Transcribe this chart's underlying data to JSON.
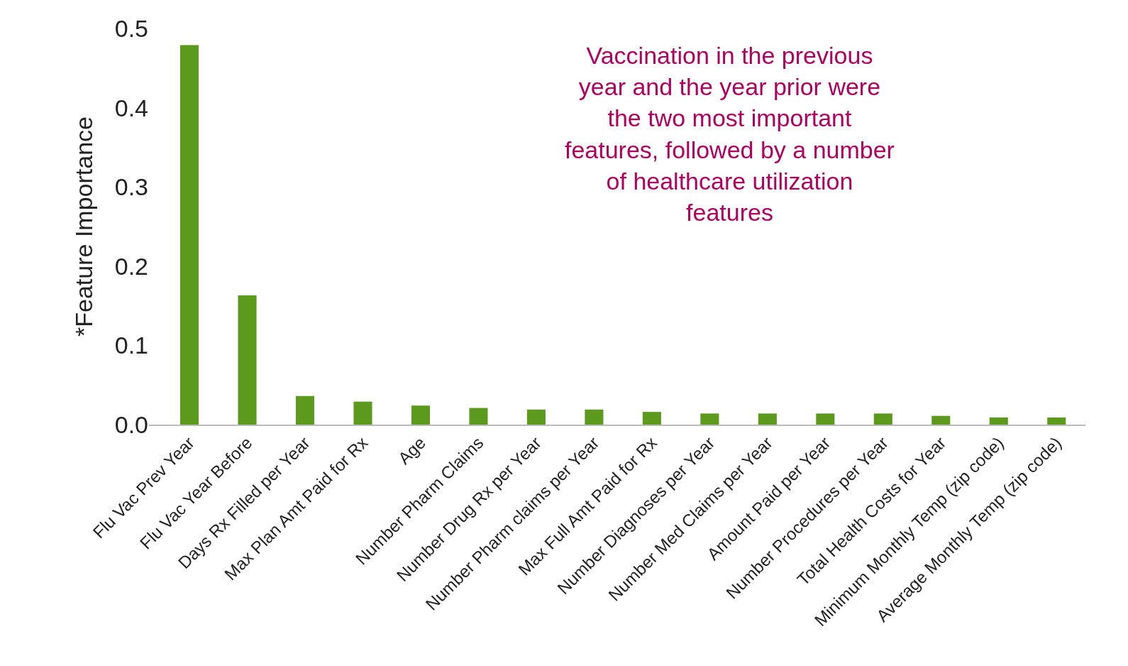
{
  "chart_data": {
    "type": "bar",
    "ylabel": "*Feature Importance",
    "categories": [
      "Flu Vac Prev Year",
      "Flu Vac Year Before",
      "Days Rx Filled per Year",
      "Max Plan Amt Paid for Rx",
      "Age",
      "Number Pharm Claims",
      "Number Drug Rx per Year",
      "Number Pharm claims per Year",
      "Max Full Amt Paid for Rx",
      "Number Diagnoses per Year",
      "Number Med Claims per Year",
      "Amount Paid per Year",
      "Number Procedures per Year",
      "Total Health Costs for Year",
      "Minimum Monthly Temp (zip code)",
      "Average Monthly Temp (zip code)"
    ],
    "values": [
      0.479,
      0.163,
      0.036,
      0.029,
      0.024,
      0.021,
      0.019,
      0.019,
      0.016,
      0.014,
      0.014,
      0.014,
      0.014,
      0.011,
      0.009,
      0.009
    ],
    "color": "#5c9a1e",
    "ylim": [
      0,
      0.5
    ],
    "yticks": [
      {
        "value": 0,
        "label": "0.0"
      },
      0.1,
      0.2,
      0.3,
      0.4,
      0.5
    ],
    "grid": false,
    "annotations": [
      "Vaccination in the previous year and the year prior were the two most important features, followed by a number of healthcare utilization features"
    ]
  }
}
